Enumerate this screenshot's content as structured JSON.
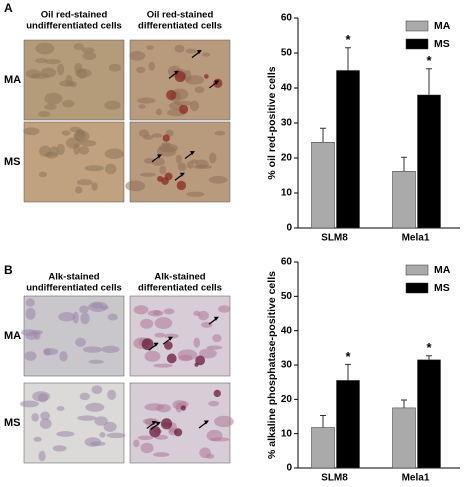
{
  "panels": [
    {
      "label": "A",
      "captions": [
        [
          "Oil red-stained",
          "undifferentiated cells"
        ],
        [
          "Oil red-stained",
          "differentiated cells"
        ]
      ],
      "rows": [
        "MA",
        "MS"
      ]
    },
    {
      "label": "B",
      "captions": [
        [
          "Alk-stained",
          "undifferentiated cells"
        ],
        [
          "Alk-stained",
          "differentiated cells"
        ]
      ],
      "rows": [
        "MA",
        "MS"
      ]
    }
  ],
  "chart_data": [
    {
      "type": "bar",
      "ylabel": "% oil red-positive cells",
      "categories": [
        "SLM8",
        "Mela1"
      ],
      "series": [
        {
          "name": "MA",
          "color": "#aaaaaa",
          "values": [
            24.5,
            16.2
          ],
          "errors": [
            4,
            4
          ]
        },
        {
          "name": "MS",
          "color": "#000000",
          "values": [
            45,
            38
          ],
          "errors": [
            6.5,
            7.5
          ],
          "significance": [
            "*",
            "*"
          ]
        }
      ],
      "ylim": [
        0,
        60
      ],
      "yticks": [
        0,
        10,
        20,
        30,
        40,
        50,
        60
      ],
      "grid": false,
      "legend": "upper left"
    },
    {
      "type": "bar",
      "ylabel": "% alkaline phosphatase-positive cells",
      "categories": [
        "SLM8",
        "Mela1"
      ],
      "series": [
        {
          "name": "MA",
          "color": "#aaaaaa",
          "values": [
            11.8,
            17.5
          ],
          "errors": [
            3.5,
            2.3
          ]
        },
        {
          "name": "MS",
          "color": "#000000",
          "values": [
            25.5,
            31.5
          ],
          "errors": [
            4.7,
            1.2
          ],
          "significance": [
            "*",
            "*"
          ]
        }
      ],
      "ylim": [
        0,
        60
      ],
      "yticks": [
        0,
        10,
        20,
        30,
        40,
        50,
        60
      ],
      "grid": false,
      "legend": "upper left"
    }
  ]
}
